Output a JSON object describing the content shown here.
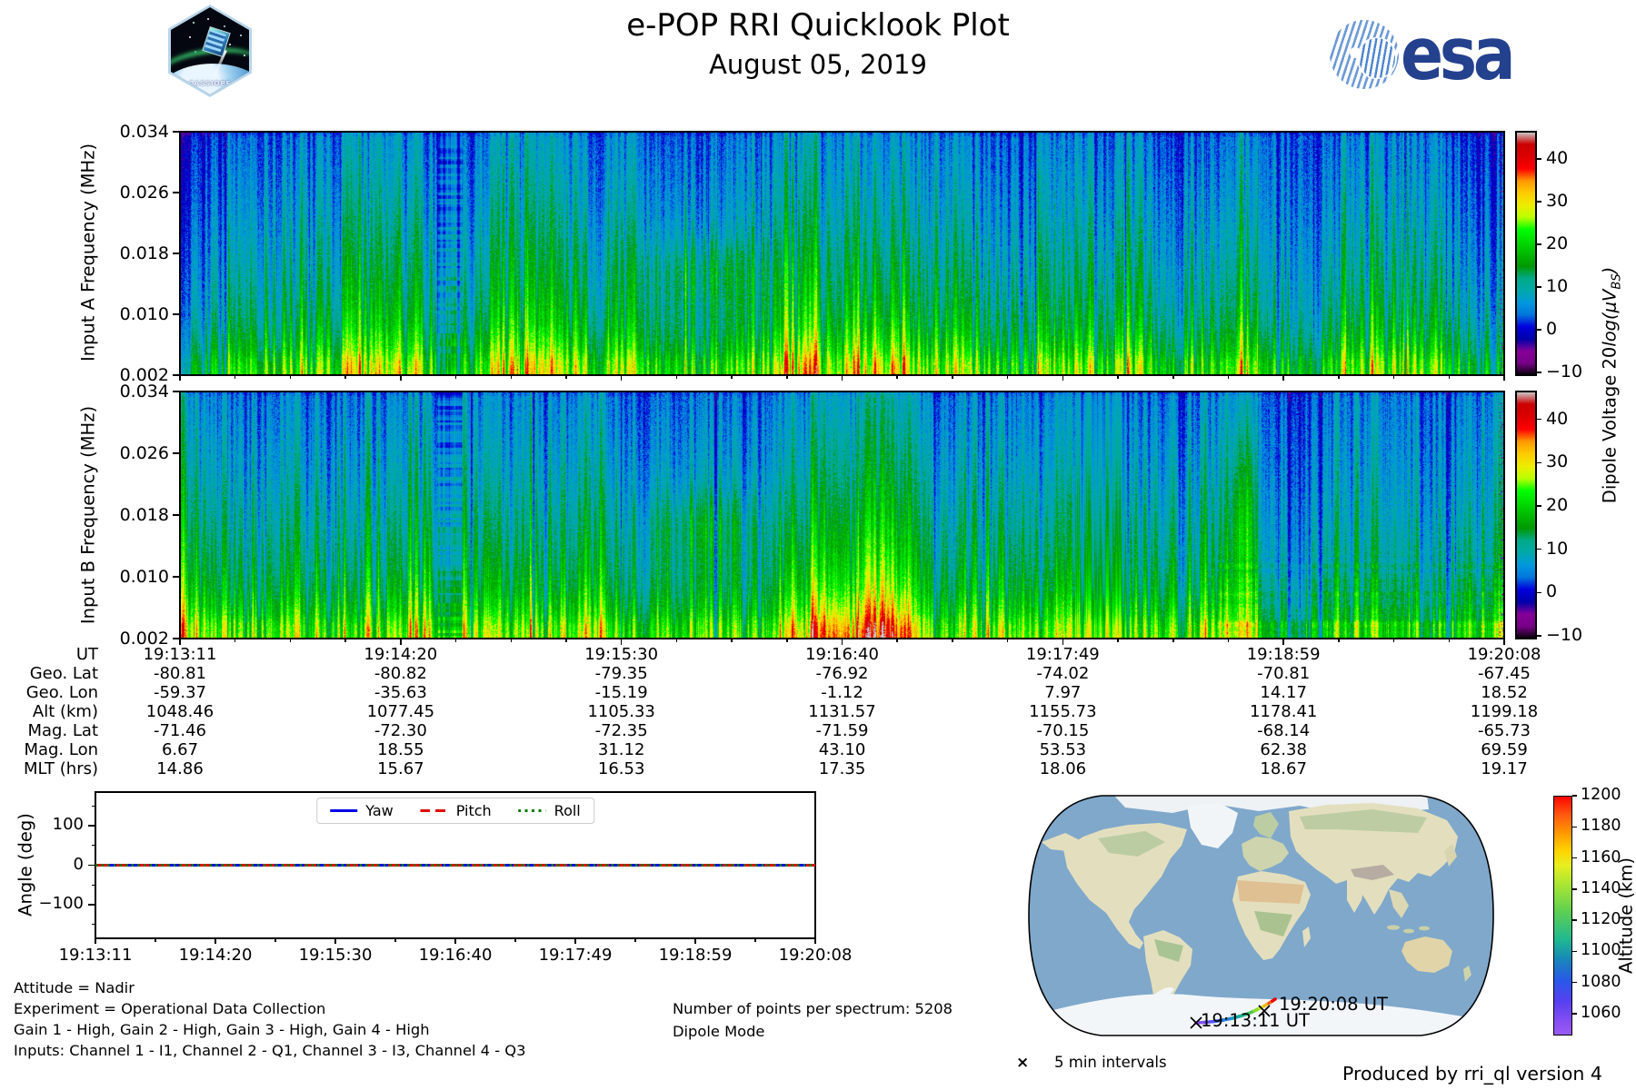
{
  "header": {
    "title": "e-POP RRI Quicklook Plot",
    "date": "August 05, 2019",
    "cassiope_text": "CASSIOPE",
    "esa_text": "esa"
  },
  "time_ticks": [
    "19:13:11",
    "19:14:20",
    "19:15:30",
    "19:16:40",
    "19:17:49",
    "19:18:59",
    "19:20:08"
  ],
  "spectrograms": {
    "input_a_ylabel": "Input A Frequency (MHz)",
    "input_b_ylabel": "Input B Frequency (MHz)",
    "ytick_labels": [
      "0.034",
      "0.026",
      "0.018",
      "0.010",
      "0.002"
    ],
    "colorbar_tick_labels": [
      "40",
      "30",
      "20",
      "10",
      "0",
      "−10"
    ],
    "colorbar_tick_values": [
      40,
      30,
      20,
      10,
      0,
      -10
    ],
    "colorbar_label": {
      "prefix": "Dipole Voltage 20",
      "math": "log(μV",
      "sub": "BS",
      "close": ")"
    }
  },
  "ephemeris_table": {
    "rows": [
      {
        "label": "UT",
        "values": [
          "19:13:11",
          "19:14:20",
          "19:15:30",
          "19:16:40",
          "19:17:49",
          "19:18:59",
          "19:20:08"
        ]
      },
      {
        "label": "Geo. Lat",
        "values": [
          "-80.81",
          "-80.82",
          "-79.35",
          "-76.92",
          "-74.02",
          "-70.81",
          "-67.45"
        ]
      },
      {
        "label": "Geo. Lon",
        "values": [
          "-59.37",
          "-35.63",
          "-15.19",
          "-1.12",
          "7.97",
          "14.17",
          "18.52"
        ]
      },
      {
        "label": "Alt (km)",
        "values": [
          "1048.46",
          "1077.45",
          "1105.33",
          "1131.57",
          "1155.73",
          "1178.41",
          "1199.18"
        ]
      },
      {
        "label": "Mag. Lat",
        "values": [
          "-71.46",
          "-72.30",
          "-72.35",
          "-71.59",
          "-70.15",
          "-68.14",
          "-65.73"
        ]
      },
      {
        "label": "Mag. Lon",
        "values": [
          "6.67",
          "18.55",
          "31.12",
          "43.10",
          "53.53",
          "62.38",
          "69.59"
        ]
      },
      {
        "label": "MLT (hrs)",
        "values": [
          "14.86",
          "15.67",
          "16.53",
          "17.35",
          "18.06",
          "18.67",
          "19.17"
        ]
      }
    ]
  },
  "angle_plot": {
    "ylabel": "Angle (deg)",
    "ytick_labels": [
      "100",
      "0",
      "−100"
    ],
    "legend": [
      {
        "label": "Yaw"
      },
      {
        "label": "Pitch"
      },
      {
        "label": "Roll"
      }
    ]
  },
  "footer": {
    "lines": [
      "Attitude = Nadir",
      "Experiment = Operational Data Collection",
      "Gain 1 - High, Gain 2 - High, Gain 3 - High, Gain 4 - High",
      "Inputs: Channel 1 - I1, Channel 2 - Q1, Channel 3 - I3, Channel 4 - Q3"
    ],
    "points_per_spectrum": "Number of points per spectrum: 5208",
    "mode": "Dipole Mode",
    "produced_by": "Produced by rri_ql version 4"
  },
  "map": {
    "start_label": "19:13:11 UT",
    "end_label": "19:20:08 UT",
    "intervals_marker": "×",
    "intervals_legend": "5 min intervals",
    "colorbar": {
      "label": "Altitude (km)",
      "tick_labels": [
        "1200",
        "1180",
        "1160",
        "1140",
        "1120",
        "1100",
        "1080",
        "1060"
      ],
      "tick_values": [
        1200,
        1180,
        1160,
        1140,
        1120,
        1100,
        1080,
        1060
      ]
    }
  },
  "chart_data": [
    {
      "type": "heatmap",
      "id": "input_a_spectrogram",
      "title": "Input A",
      "xlabel": "UT",
      "ylabel": "Input A Frequency (MHz)",
      "x_ticks": [
        "19:13:11",
        "19:14:20",
        "19:15:30",
        "19:16:40",
        "19:17:49",
        "19:18:59",
        "19:20:08"
      ],
      "y_ticks_mhz": [
        0.034,
        0.026,
        0.018,
        0.01,
        0.002
      ],
      "y_range_mhz": [
        0.002,
        0.034
      ],
      "colormap": "nipy_spectral",
      "color_range_db": [
        -10.6,
        46.4
      ],
      "colorbar_ticks": [
        40,
        30,
        20,
        10,
        0,
        -10
      ],
      "mean_intensity_db_by_freq": {
        "freq_mhz": [
          0.002,
          0.006,
          0.01,
          0.014,
          0.018,
          0.022,
          0.026,
          0.03,
          0.034
        ],
        "db": [
          24,
          17,
          13,
          11.5,
          10,
          8.5,
          7,
          6,
          5
        ]
      },
      "notable_features": [
        "bright green band below ~0.008 MHz for entire pass",
        "smooth blue dropout column near 19:13:45",
        "diffuse green enhancement near 0.015 MHz around 19:15:00",
        "bright low-frequency columns 19:15:30-19:16:00",
        "dark navy column near 19:17:05",
        "generally darker/bluer after 19:17:30",
        "sparse purple speckles at right edge"
      ]
    },
    {
      "type": "heatmap",
      "id": "input_b_spectrogram",
      "title": "Input B",
      "xlabel": "UT",
      "ylabel": "Input B Frequency (MHz)",
      "x_ticks": [
        "19:13:11",
        "19:14:20",
        "19:15:30",
        "19:16:40",
        "19:17:49",
        "19:18:59",
        "19:20:08"
      ],
      "y_ticks_mhz": [
        0.034,
        0.026,
        0.018,
        0.01,
        0.002
      ],
      "y_range_mhz": [
        0.002,
        0.034
      ],
      "colormap": "nipy_spectral",
      "color_range_db": [
        -10.6,
        46.4
      ],
      "colorbar_ticks": [
        40,
        30,
        20,
        10,
        0,
        -10
      ],
      "mean_intensity_db_by_freq": {
        "freq_mhz": [
          0.002,
          0.006,
          0.01,
          0.014,
          0.018,
          0.022,
          0.026,
          0.03,
          0.034
        ],
        "db": [
          24,
          17,
          13,
          11.5,
          10,
          8.5,
          7,
          6,
          5
        ]
      },
      "notable_features": [
        "bright green band below ~0.008 MHz, strongest (orange flecks) 19:15:30-19:16:00",
        "smooth blue dropout column near 19:13:45",
        "light-blue smooth block near 19:17:00",
        "narrow bright green streak at mid frequencies near 19:17:55",
        "dark navy region after 19:18:00 at upper frequencies",
        "horizontal banded speckle at low frequencies on right side"
      ]
    },
    {
      "type": "line",
      "id": "attitude_angles",
      "categories": [
        "19:13:11",
        "19:14:20",
        "19:15:30",
        "19:16:40",
        "19:17:49",
        "19:18:59",
        "19:20:08"
      ],
      "series": [
        {
          "name": "Yaw",
          "values": [
            0,
            0,
            0,
            0,
            0,
            0,
            0
          ]
        },
        {
          "name": "Pitch",
          "values": [
            0,
            0,
            0,
            0,
            0,
            0,
            0
          ]
        },
        {
          "name": "Roll",
          "values": [
            0,
            0,
            0,
            0,
            0,
            0,
            0
          ]
        }
      ],
      "ylabel": "Angle (deg)",
      "ylim": [
        -185,
        185
      ],
      "yticks": [
        100,
        0,
        -100
      ],
      "legend_position": "upper center",
      "grid": false
    },
    {
      "type": "table",
      "id": "ephemeris",
      "row_labels": [
        "UT",
        "Geo. Lat",
        "Geo. Lon",
        "Alt (km)",
        "Mag. Lat",
        "Mag. Lon",
        "MLT (hrs)"
      ],
      "columns": [
        [
          "19:13:11",
          -80.81,
          -59.37,
          1048.46,
          -71.46,
          6.67,
          14.86
        ],
        [
          "19:14:20",
          -80.82,
          -35.63,
          1077.45,
          -72.3,
          18.55,
          15.67
        ],
        [
          "19:15:30",
          -79.35,
          -15.19,
          1105.33,
          -72.35,
          31.12,
          16.53
        ],
        [
          "19:16:40",
          -76.92,
          -1.12,
          1131.57,
          -71.59,
          43.1,
          17.35
        ],
        [
          "19:17:49",
          -74.02,
          7.97,
          1155.73,
          -70.15,
          53.53,
          18.06
        ],
        [
          "19:18:59",
          -70.81,
          14.17,
          1178.41,
          -68.14,
          62.38,
          18.67
        ],
        [
          "19:20:08",
          -67.45,
          18.52,
          1199.18,
          -65.73,
          69.59,
          19.17
        ]
      ]
    },
    {
      "type": "line",
      "id": "ground_track",
      "projection": "world map",
      "color_by": "Altitude (km)",
      "colormap": "rainbow",
      "colorbar_ticks": [
        1200,
        1180,
        1160,
        1140,
        1120,
        1100,
        1080,
        1060
      ],
      "marker_legend": "5 min intervals",
      "points": [
        {
          "ut": "19:13:11",
          "geo_lat": -80.81,
          "geo_lon": -59.37,
          "alt_km": 1048.46
        },
        {
          "ut": "19:20:08",
          "geo_lat": -67.45,
          "geo_lon": 18.52,
          "alt_km": 1199.18
        }
      ]
    }
  ]
}
